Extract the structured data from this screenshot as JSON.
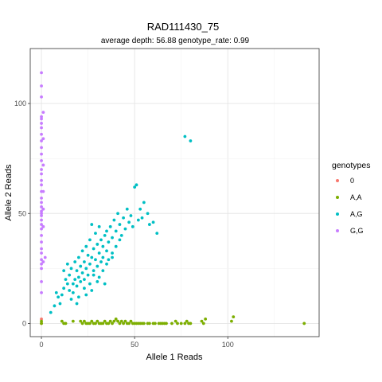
{
  "chart_data": {
    "type": "scatter",
    "title": "RAD111430_75",
    "subtitle": "average depth:  56.88  genotype_rate:  0.99",
    "xlabel": "Allele 1 Reads",
    "ylabel": "Allele 2 Reads",
    "xlim": [
      -6,
      149
    ],
    "ylim": [
      -6,
      125
    ],
    "x_ticks": [
      0,
      50,
      100
    ],
    "y_ticks": [
      0,
      50,
      100
    ],
    "grid": true,
    "legend": {
      "title": "genotypes",
      "position": "right"
    },
    "series": [
      {
        "name": "0",
        "color": "#F8766D",
        "points": [
          [
            0,
            2
          ],
          [
            0,
            0
          ]
        ]
      },
      {
        "name": "A,A",
        "color": "#7CAE00",
        "points": [
          [
            0,
            0
          ],
          [
            0,
            1
          ],
          [
            11,
            1
          ],
          [
            12,
            0
          ],
          [
            13,
            0
          ],
          [
            17,
            1
          ],
          [
            21,
            1
          ],
          [
            22,
            0
          ],
          [
            23,
            1
          ],
          [
            24,
            0
          ],
          [
            25,
            0
          ],
          [
            26,
            0
          ],
          [
            27,
            1
          ],
          [
            28,
            0
          ],
          [
            29,
            0
          ],
          [
            30,
            1
          ],
          [
            31,
            0
          ],
          [
            32,
            0
          ],
          [
            33,
            0
          ],
          [
            34,
            1
          ],
          [
            35,
            0
          ],
          [
            36,
            0
          ],
          [
            37,
            1
          ],
          [
            38,
            0
          ],
          [
            39,
            1
          ],
          [
            40,
            2
          ],
          [
            41,
            1
          ],
          [
            42,
            0
          ],
          [
            43,
            1
          ],
          [
            44,
            0
          ],
          [
            45,
            1
          ],
          [
            46,
            0
          ],
          [
            47,
            0
          ],
          [
            48,
            1
          ],
          [
            49,
            0
          ],
          [
            50,
            0
          ],
          [
            51,
            0
          ],
          [
            52,
            0
          ],
          [
            53,
            0
          ],
          [
            54,
            0
          ],
          [
            55,
            0
          ],
          [
            57,
            0
          ],
          [
            58,
            0
          ],
          [
            60,
            0
          ],
          [
            61,
            0
          ],
          [
            63,
            0
          ],
          [
            64,
            0
          ],
          [
            65,
            0
          ],
          [
            66,
            0
          ],
          [
            67,
            0
          ],
          [
            70,
            0
          ],
          [
            72,
            1
          ],
          [
            73,
            0
          ],
          [
            75,
            0
          ],
          [
            77,
            0
          ],
          [
            78,
            1
          ],
          [
            79,
            0
          ],
          [
            80,
            0
          ],
          [
            86,
            1
          ],
          [
            87,
            0
          ],
          [
            88,
            2
          ],
          [
            102,
            1
          ],
          [
            103,
            3
          ],
          [
            141,
            0
          ]
        ]
      },
      {
        "name": "A,G",
        "color": "#00BFC4",
        "points": [
          [
            5,
            5
          ],
          [
            7,
            8
          ],
          [
            8,
            14
          ],
          [
            9,
            12
          ],
          [
            10,
            9
          ],
          [
            11,
            13
          ],
          [
            12,
            16
          ],
          [
            13,
            20
          ],
          [
            14,
            18
          ],
          [
            15,
            22
          ],
          [
            15,
            15
          ],
          [
            16,
            25
          ],
          [
            17,
            18
          ],
          [
            17,
            14
          ],
          [
            18,
            20
          ],
          [
            18,
            28
          ],
          [
            19,
            17
          ],
          [
            19,
            24
          ],
          [
            20,
            21
          ],
          [
            20,
            30
          ],
          [
            21,
            19
          ],
          [
            21,
            26
          ],
          [
            22,
            23
          ],
          [
            22,
            33
          ],
          [
            23,
            28
          ],
          [
            23,
            20
          ],
          [
            24,
            35
          ],
          [
            24,
            25
          ],
          [
            25,
            31
          ],
          [
            25,
            22
          ],
          [
            26,
            38
          ],
          [
            26,
            27
          ],
          [
            27,
            45
          ],
          [
            27,
            30
          ],
          [
            28,
            24
          ],
          [
            28,
            34
          ],
          [
            29,
            29
          ],
          [
            29,
            41
          ],
          [
            30,
            26
          ],
          [
            30,
            36
          ],
          [
            31,
            32
          ],
          [
            31,
            44
          ],
          [
            32,
            28
          ],
          [
            32,
            38
          ],
          [
            33,
            35
          ],
          [
            33,
            30
          ],
          [
            34,
            40
          ],
          [
            35,
            33
          ],
          [
            35,
            42
          ],
          [
            36,
            37
          ],
          [
            36,
            29
          ],
          [
            37,
            44
          ],
          [
            38,
            39
          ],
          [
            38,
            32
          ],
          [
            39,
            47
          ],
          [
            40,
            42
          ],
          [
            40,
            35
          ],
          [
            41,
            50
          ],
          [
            42,
            45
          ],
          [
            42,
            38
          ],
          [
            43,
            40
          ],
          [
            44,
            48
          ],
          [
            45,
            43
          ],
          [
            46,
            52
          ],
          [
            47,
            46
          ],
          [
            48,
            49
          ],
          [
            49,
            44
          ],
          [
            50,
            62
          ],
          [
            51,
            63
          ],
          [
            52,
            47
          ],
          [
            53,
            52
          ],
          [
            54,
            48
          ],
          [
            55,
            55
          ],
          [
            57,
            50
          ],
          [
            58,
            45
          ],
          [
            60,
            46
          ],
          [
            62,
            41
          ],
          [
            77,
            85
          ],
          [
            80,
            83
          ],
          [
            20,
            12
          ],
          [
            23,
            16
          ],
          [
            26,
            18
          ],
          [
            28,
            22
          ],
          [
            30,
            19
          ],
          [
            33,
            24
          ],
          [
            35,
            27
          ],
          [
            38,
            30
          ],
          [
            24,
            13
          ],
          [
            27,
            15
          ],
          [
            31,
            21
          ],
          [
            34,
            18
          ],
          [
            16,
            11
          ],
          [
            19,
            9
          ],
          [
            14,
            27
          ],
          [
            12,
            24
          ]
        ]
      },
      {
        "name": "G,G",
        "color": "#C77CFF",
        "points": [
          [
            0,
            114
          ],
          [
            0,
            108
          ],
          [
            0,
            103
          ],
          [
            0,
            94
          ],
          [
            0,
            93
          ],
          [
            0,
            91
          ],
          [
            0,
            89
          ],
          [
            0,
            86
          ],
          [
            0,
            83
          ],
          [
            0,
            80
          ],
          [
            0,
            77
          ],
          [
            0,
            74
          ],
          [
            0,
            70
          ],
          [
            0,
            68
          ],
          [
            0,
            65
          ],
          [
            0,
            63
          ],
          [
            0,
            60
          ],
          [
            0,
            57
          ],
          [
            0,
            55
          ],
          [
            0,
            53
          ],
          [
            0,
            51
          ],
          [
            0,
            50
          ],
          [
            0,
            49
          ],
          [
            0,
            47
          ],
          [
            0,
            45
          ],
          [
            0,
            43
          ],
          [
            0,
            40
          ],
          [
            0,
            37
          ],
          [
            0,
            34
          ],
          [
            0,
            32
          ],
          [
            0,
            29
          ],
          [
            0,
            27
          ],
          [
            0,
            25
          ],
          [
            0,
            19
          ],
          [
            0,
            14
          ],
          [
            1,
            60
          ],
          [
            1,
            72
          ],
          [
            1,
            84
          ],
          [
            1,
            52
          ],
          [
            1,
            44
          ],
          [
            2,
            30
          ],
          [
            1,
            28
          ],
          [
            1,
            96
          ]
        ]
      }
    ]
  }
}
